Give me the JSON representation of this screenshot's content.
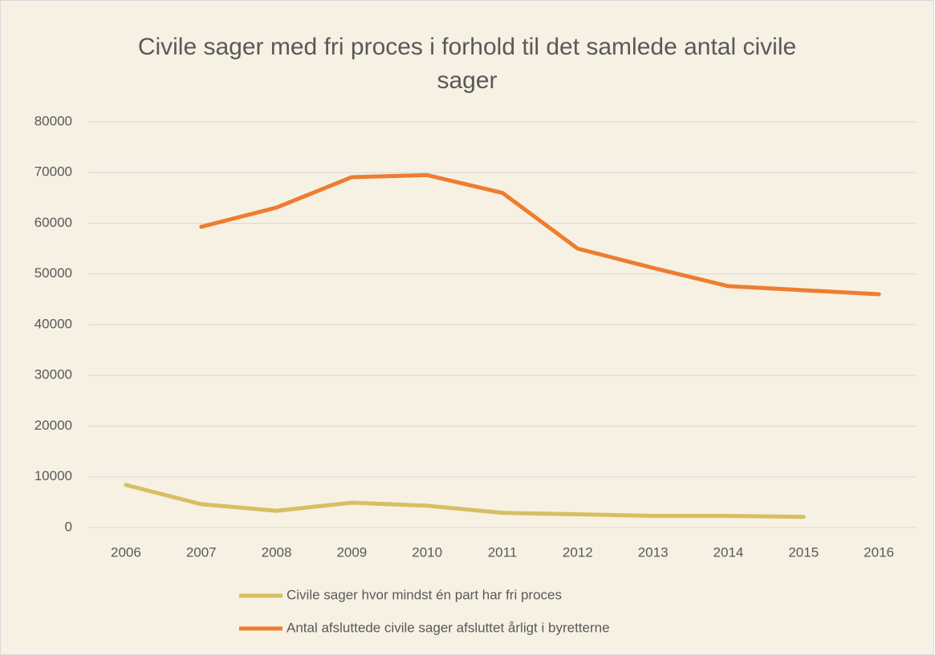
{
  "chart_data": {
    "type": "line",
    "title": "Civile sager med fri proces i forhold til det samlede antal civile sager",
    "categories": [
      "2006",
      "2007",
      "2008",
      "2009",
      "2010",
      "2011",
      "2012",
      "2013",
      "2014",
      "2015",
      "2016"
    ],
    "series": [
      {
        "name": "Civile sager hvor mindst én part har fri proces",
        "color": "#d6bf63",
        "values": [
          8400,
          4600,
          3300,
          4900,
          4300,
          2900,
          2600,
          2300,
          2300,
          2100,
          null
        ]
      },
      {
        "name": "Antal afsluttede civile sager afsluttet årligt i byretterne",
        "color": "#ed7d31",
        "values": [
          null,
          59300,
          63100,
          69100,
          69500,
          66000,
          55000,
          51200,
          47600,
          46800,
          46000
        ]
      }
    ],
    "ylim": [
      0,
      80000
    ],
    "yticks": [
      0,
      10000,
      20000,
      30000,
      40000,
      50000,
      60000,
      70000,
      80000
    ],
    "grid": true,
    "legend": "bottom"
  }
}
